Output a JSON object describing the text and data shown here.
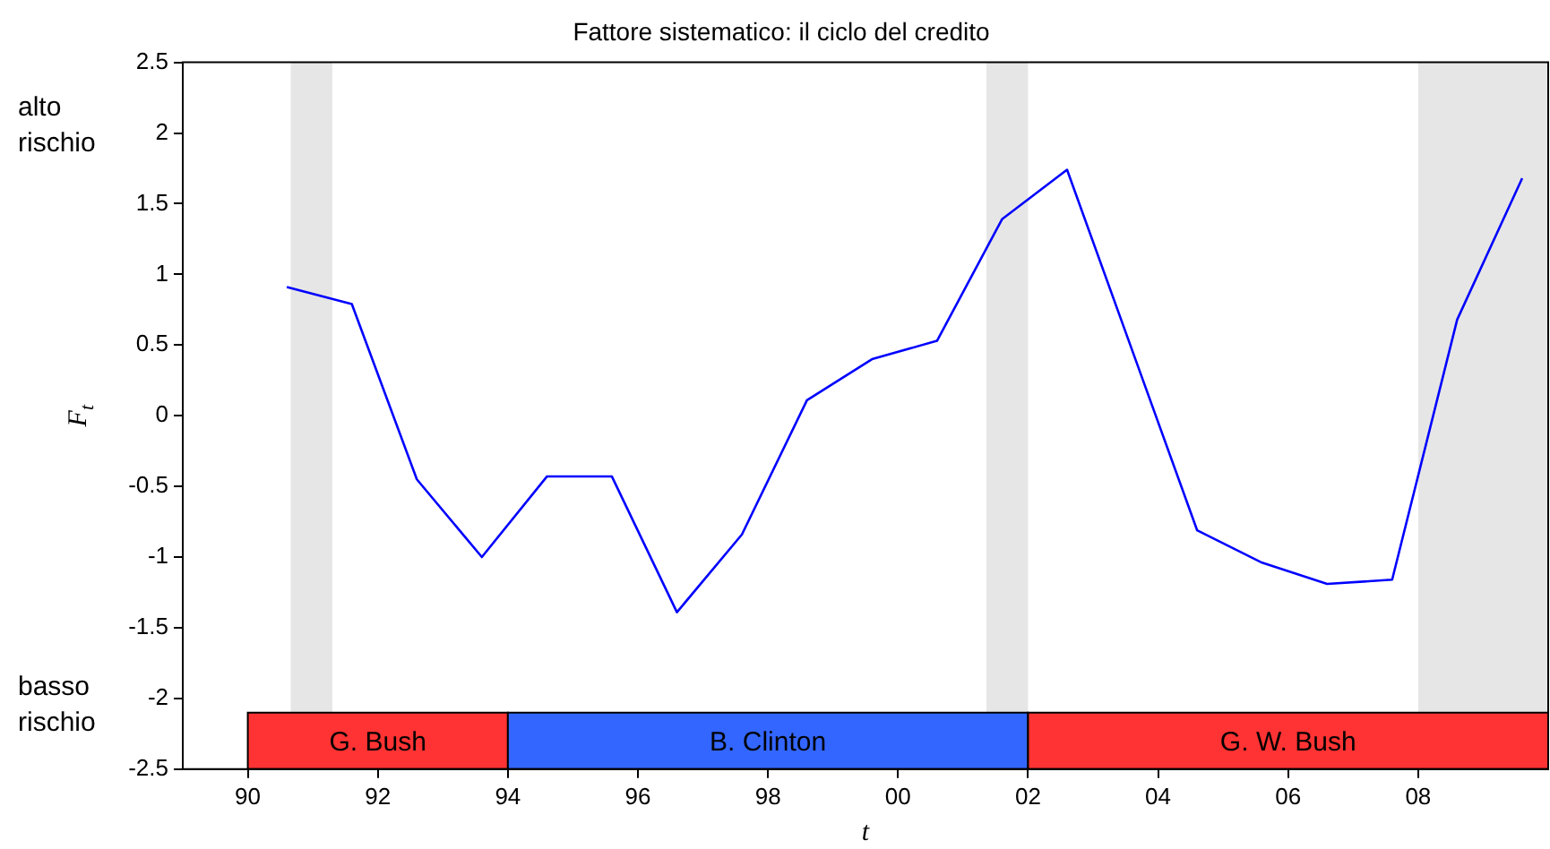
{
  "chart_data": {
    "type": "line",
    "title": "Fattore sistematico: il ciclo del credito",
    "xlabel": "t",
    "ylabel": "F$_{t}$",
    "annotations": [
      "alto rischio",
      "basso rischio"
    ],
    "x": [
      1990.6,
      1991.6,
      1992.6,
      1993.6,
      1994.6,
      1995.6,
      1996.6,
      1997.6,
      1998.6,
      1999.6,
      2000.6,
      2001.6,
      2002.6,
      2004.6,
      2005.6,
      2006.6,
      2007.6,
      2008.6,
      2009.6
    ],
    "series": [
      {
        "color": "#0000ff",
        "values": [
          0.91,
          0.79,
          -0.45,
          -1.0,
          -0.43,
          -0.43,
          -1.39,
          -0.84,
          0.11,
          0.4,
          0.53,
          1.39,
          1.74,
          -0.81,
          -1.04,
          -1.19,
          -1.16,
          0.68,
          1.68
        ]
      }
    ],
    "xlim": [
      1989,
      2010
    ],
    "xticks": [
      {
        "value": 1990,
        "label": "90"
      },
      {
        "value": 1992,
        "label": "92"
      },
      {
        "value": 1994,
        "label": "94"
      },
      {
        "value": 1996,
        "label": "96"
      },
      {
        "value": 1998,
        "label": "98"
      },
      {
        "value": 2000,
        "label": "00"
      },
      {
        "value": 2002,
        "label": "02"
      },
      {
        "value": 2004,
        "label": "04"
      },
      {
        "value": 2006,
        "label": "06"
      },
      {
        "value": 2008,
        "label": "08"
      }
    ],
    "ylim": [
      -2.5,
      2.5
    ],
    "yticks": [
      -2.5,
      -2,
      -1.5,
      -1,
      -0.5,
      0,
      0.5,
      1,
      1.5,
      2,
      2.5
    ],
    "bands": [
      {
        "axis": "x",
        "from": 1990.66,
        "to": 1991.3,
        "color": "#e6e6e6"
      },
      {
        "axis": "x",
        "from": 2001.36,
        "to": 2002.0,
        "color": "#e6e6e6"
      },
      {
        "axis": "x",
        "from": 2008.0,
        "to": 2010,
        "color": "#e6e6e6"
      },
      {
        "axis": "x",
        "from": 1990,
        "to": 1994,
        "label": "G. Bush",
        "color": "#ff3333"
      },
      {
        "axis": "x",
        "from": 1994,
        "to": 2002,
        "label": "B. Clinton",
        "color": "#3366ff"
      },
      {
        "axis": "x",
        "from": 2002,
        "to": 2010,
        "label": "G. W. Bush",
        "color": "#ff3333"
      }
    ],
    "legend": false,
    "marker": "none",
    "line_style": "solid"
  }
}
